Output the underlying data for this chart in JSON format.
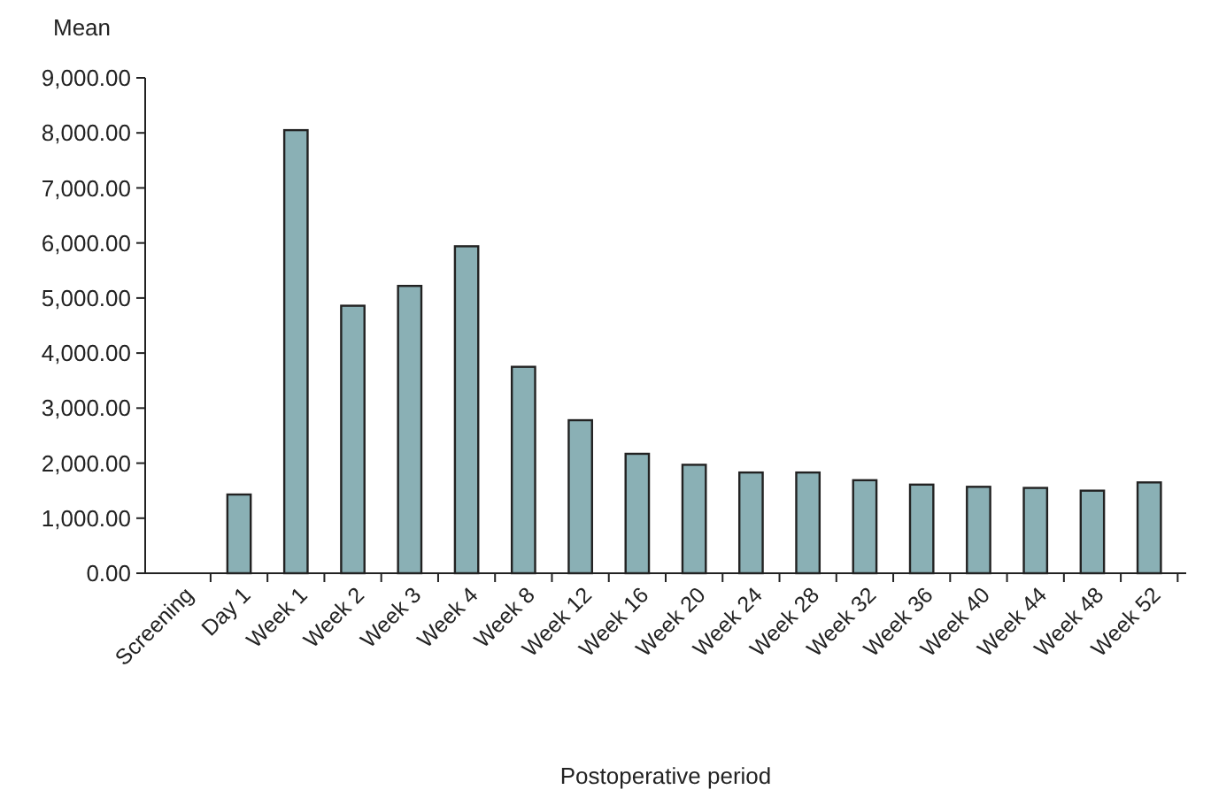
{
  "chart_data": {
    "type": "bar",
    "ylabel": "Mean",
    "xlabel": "Postoperative period",
    "categories": [
      "Screening",
      "Day 1",
      "Week 1",
      "Week 2",
      "Week 3",
      "Week 4",
      "Week 8",
      "Week 12",
      "Week 16",
      "Week 20",
      "Week 24",
      "Week 28",
      "Week 32",
      "Week 36",
      "Week 40",
      "Week 44",
      "Week 48",
      "Week 52"
    ],
    "values": [
      null,
      1430,
      8050,
      4860,
      5220,
      5940,
      3750,
      2780,
      2170,
      1970,
      1830,
      1830,
      1690,
      1610,
      1570,
      1550,
      1500,
      1650
    ],
    "color": "#8ab0b5",
    "ylim": [
      0,
      9000
    ],
    "yticks": [
      {
        "value": 0,
        "label": "0.00"
      },
      {
        "value": 1000,
        "label": "1,000.00"
      },
      {
        "value": 2000,
        "label": "2,000.00"
      },
      {
        "value": 3000,
        "label": "3,000.00"
      },
      {
        "value": 4000,
        "label": "4,000.00"
      },
      {
        "value": 5000,
        "label": "5,000.00"
      },
      {
        "value": 6000,
        "label": "6,000.00"
      },
      {
        "value": 7000,
        "label": "7,000.00"
      },
      {
        "value": 8000,
        "label": "8,000.00"
      },
      {
        "value": 9000,
        "label": "9,000.00"
      }
    ],
    "grid": false
  }
}
